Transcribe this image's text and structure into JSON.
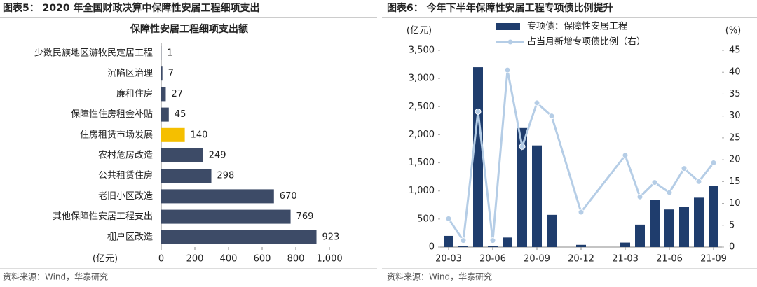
{
  "chart_data": [
    {
      "type": "bar",
      "orientation": "horizontal",
      "figure_title": "图表5： 2020 年全国财政决算中保障性安居工程细项支出",
      "title": "保障性安居工程细项支出额",
      "x_label": "(亿元)",
      "source": "资料来源：Wind，华泰研究",
      "categories": [
        "少数民族地区游牧民定居工程",
        "沉陷区治理",
        "廉租住房",
        "保障性住房租金补贴",
        "住房租赁市场发展",
        "农村危房改造",
        "公共租赁住房",
        "老旧小区改造",
        "其他保障性安居工程支出",
        "棚户区改造"
      ],
      "values": [
        1,
        7,
        27,
        45,
        140,
        249,
        298,
        670,
        769,
        923
      ],
      "colors": [
        "#3d4b67",
        "#3d4b67",
        "#3d4b67",
        "#3d4b67",
        "#f5bf00",
        "#3d4b67",
        "#3d4b67",
        "#3d4b67",
        "#3d4b67",
        "#3d4b67"
      ],
      "xlim": [
        0,
        1000
      ],
      "xticks": [
        0,
        200,
        400,
        600,
        800,
        {
          "value": 1000,
          "label": "1,000"
        }
      ]
    },
    {
      "type": "combo",
      "figure_title": "图表6： 今年下半年保障性安居工程专项债比例提升",
      "y_label": "(亿元)",
      "y2_label": "(%)",
      "source": "资料来源：Wind，华泰研究",
      "categories": [
        "20-03",
        null,
        null,
        "20-06",
        null,
        null,
        "20-09",
        null,
        null,
        "20-12",
        null,
        null,
        "21-03",
        null,
        null,
        "21-06",
        null,
        null,
        "21-09"
      ],
      "connect_nulls": true,
      "series": [
        {
          "name": "专项债：保障性安居工程",
          "kind": "bar",
          "color": "#1f3d6d",
          "values": [
            200,
            20,
            3200,
            15,
            170,
            2120,
            1810,
            575,
            null,
            40,
            null,
            null,
            80,
            400,
            840,
            670,
            720,
            880,
            1090
          ]
        },
        {
          "name": "占当月新增专项债比例（右）",
          "kind": "line",
          "axis": "y2",
          "color": "#b5cde6",
          "values": [
            6.5,
            1.5,
            31,
            1.5,
            40.5,
            23,
            33,
            30,
            null,
            8,
            null,
            null,
            21,
            11.5,
            14.8,
            12.5,
            18,
            15,
            19.3
          ]
        }
      ],
      "ylim": [
        0,
        3500
      ],
      "yticks": [
        0,
        500,
        {
          "value": 1000,
          "label": "1,000"
        },
        {
          "value": 1500,
          "label": "1,500"
        },
        {
          "value": 2000,
          "label": "2,000"
        },
        {
          "value": 2500,
          "label": "2,500"
        },
        {
          "value": 3000,
          "label": "3,000"
        },
        {
          "value": 3500,
          "label": "3,500"
        }
      ],
      "y2lim": [
        0,
        45
      ],
      "y2ticks": [
        0,
        5,
        10,
        15,
        20,
        25,
        30,
        35,
        40,
        45
      ]
    }
  ]
}
